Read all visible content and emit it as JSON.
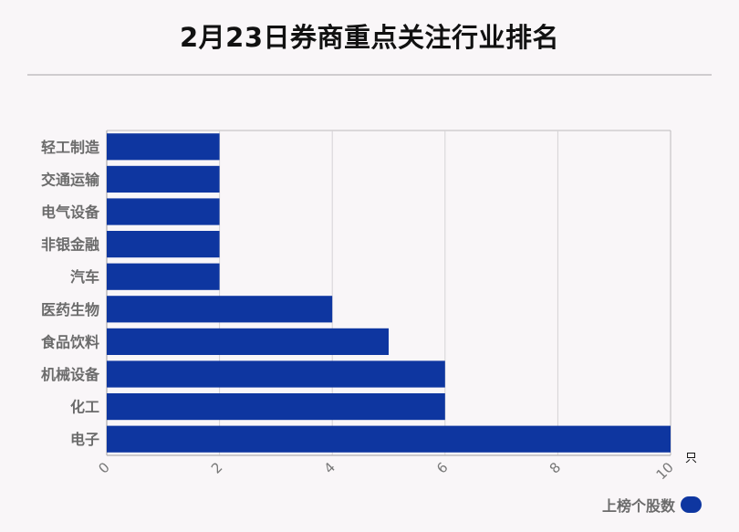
{
  "title": "2月23日券商重点关注行业排名",
  "unit": "只",
  "legend_label": "上榜个股数",
  "colors": {
    "bar": "#0e36a0",
    "grid": "#d5d3d5",
    "axis": "#bdbbbd"
  },
  "chart_data": {
    "type": "bar",
    "orientation": "horizontal",
    "title": "2月23日券商重点关注行业排名",
    "categories": [
      "轻工制造",
      "交通运输",
      "电气设备",
      "非银金融",
      "汽车",
      "医药生物",
      "食品饮料",
      "机械设备",
      "化工",
      "电子"
    ],
    "series": [
      {
        "name": "上榜个股数",
        "values": [
          2,
          2,
          2,
          2,
          2,
          4,
          5,
          6,
          6,
          10
        ]
      }
    ],
    "xlim": [
      0,
      10
    ],
    "xticks": [
      "0",
      "2",
      "4",
      "6",
      "8",
      "10"
    ],
    "xunit": "只",
    "grid": true,
    "legend_position": "bottom-right"
  }
}
